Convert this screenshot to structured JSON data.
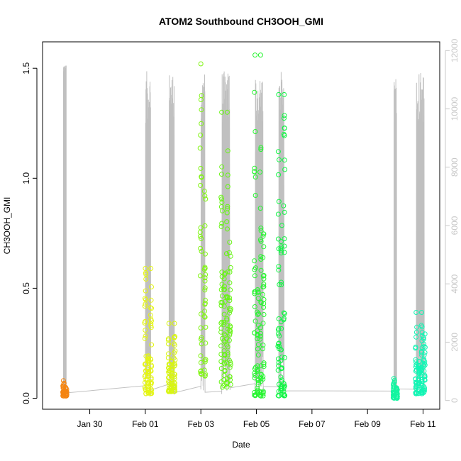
{
  "chart_data": {
    "type": "scatter",
    "title": "ATOM2 Southbound CH3OOH_GMI",
    "xlabel": "Date",
    "ylabel": "CH3OOH_GMI",
    "x_tick_labels": [
      "Jan 30",
      "Feb 01",
      "Feb 03",
      "Feb 05",
      "Feb 07",
      "Feb 09",
      "Feb 11"
    ],
    "x_tick_days": [
      30,
      32,
      34,
      36,
      38,
      40,
      42
    ],
    "xlim_days": [
      28.3,
      42.6
    ],
    "ylim": [
      -0.05,
      1.62
    ],
    "y_ticks": [
      0.0,
      0.5,
      1.0,
      1.5
    ],
    "y_tick_labels": [
      "0.0",
      "0.5",
      "1.0",
      "1.5"
    ],
    "y2_ticks": [
      0,
      2000,
      4000,
      6000,
      8000,
      10000,
      12000
    ],
    "y2_tick_labels": [
      "0",
      "2000",
      "4000",
      "6000",
      "8000",
      "10000",
      "12000"
    ],
    "y2lim": [
      -300,
      12300
    ],
    "y2_color": "#c8c8c8",
    "altitude_color": "#c0c0c0",
    "grid": false,
    "legend": "none",
    "flights": [
      {
        "start": 29.05,
        "end": 29.15,
        "ymin": 0.01,
        "ymax": 0.08,
        "color": "#f48512"
      },
      {
        "start": 32.0,
        "end": 32.2,
        "ymin": 0.02,
        "ymax": 0.59,
        "color": "#e4f512"
      },
      {
        "start": 32.85,
        "end": 33.05,
        "ymin": 0.03,
        "ymax": 0.34,
        "color": "#d8f512"
      },
      {
        "start": 34.0,
        "end": 34.15,
        "ymin": 0.1,
        "ymax": 1.52,
        "color": "#80f512"
      },
      {
        "start": 34.75,
        "end": 35.05,
        "ymin": 0.05,
        "ymax": 1.3,
        "color": "#66f512"
      },
      {
        "start": 35.95,
        "end": 36.25,
        "ymin": 0.01,
        "ymax": 1.56,
        "color": "#27f530"
      },
      {
        "start": 36.8,
        "end": 37.0,
        "ymin": 0.01,
        "ymax": 1.38,
        "color": "#12f545"
      },
      {
        "start": 40.95,
        "end": 41.05,
        "ymin": 0.0,
        "ymax": 0.09,
        "color": "#12f5a0"
      },
      {
        "start": 41.75,
        "end": 42.05,
        "ymin": 0.02,
        "ymax": 0.39,
        "color": "#12f5b4"
      }
    ]
  }
}
